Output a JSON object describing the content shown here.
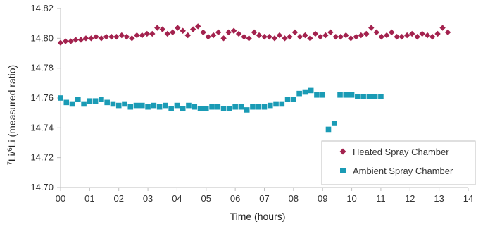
{
  "chart_data": {
    "type": "scatter",
    "title": "",
    "xlabel": "Time (hours)",
    "ylabel": "7Li/6Li (measured ratio)",
    "ylabel_parts": {
      "sup1": "7",
      "base1": "Li/",
      "sup2": "6",
      "base2": "Li (measured ratio)"
    },
    "xlim": [
      0,
      14
    ],
    "ylim": [
      14.7,
      14.82
    ],
    "x_ticks": [
      0,
      1,
      2,
      3,
      4,
      5,
      6,
      7,
      8,
      9,
      10,
      11,
      12,
      13,
      14
    ],
    "x_tick_labels": [
      "00",
      "01",
      "02",
      "03",
      "04",
      "05",
      "06",
      "07",
      "08",
      "09",
      "10",
      "11",
      "12",
      "13",
      "14"
    ],
    "y_ticks": [
      14.7,
      14.72,
      14.74,
      14.76,
      14.78,
      14.8,
      14.82
    ],
    "y_tick_labels": [
      "14.70",
      "14.72",
      "14.74",
      "14.76",
      "14.78",
      "14.80",
      "14.82"
    ],
    "grid": false,
    "legend_position": "bottom-right",
    "series": [
      {
        "name": "Heated Spray Chamber",
        "marker": "diamond",
        "color": "#a3224e",
        "x": [
          0.0,
          0.17,
          0.35,
          0.52,
          0.7,
          0.87,
          1.05,
          1.22,
          1.4,
          1.57,
          1.75,
          1.92,
          2.1,
          2.27,
          2.45,
          2.62,
          2.8,
          2.97,
          3.15,
          3.32,
          3.5,
          3.67,
          3.85,
          4.02,
          4.2,
          4.37,
          4.55,
          4.72,
          4.9,
          5.07,
          5.25,
          5.42,
          5.6,
          5.77,
          5.95,
          6.12,
          6.3,
          6.47,
          6.65,
          6.82,
          7.0,
          7.17,
          7.35,
          7.52,
          7.7,
          7.87,
          8.05,
          8.22,
          8.4,
          8.57,
          8.75,
          8.92,
          9.1,
          9.27,
          9.45,
          9.62,
          9.8,
          9.97,
          10.15,
          10.32,
          10.5,
          10.67,
          10.85,
          11.02,
          11.2,
          11.37,
          11.55,
          11.72,
          11.9,
          12.07,
          12.25,
          12.42,
          12.6,
          12.77,
          12.95,
          13.12,
          13.3
        ],
        "y": [
          14.797,
          14.798,
          14.798,
          14.799,
          14.799,
          14.8,
          14.8,
          14.801,
          14.8,
          14.801,
          14.801,
          14.801,
          14.802,
          14.801,
          14.8,
          14.802,
          14.802,
          14.803,
          14.803,
          14.807,
          14.806,
          14.803,
          14.804,
          14.807,
          14.805,
          14.802,
          14.806,
          14.808,
          14.804,
          14.801,
          14.802,
          14.804,
          14.8,
          14.804,
          14.805,
          14.803,
          14.801,
          14.8,
          14.804,
          14.802,
          14.801,
          14.801,
          14.8,
          14.802,
          14.8,
          14.801,
          14.804,
          14.801,
          14.802,
          14.8,
          14.803,
          14.801,
          14.802,
          14.804,
          14.801,
          14.801,
          14.802,
          14.8,
          14.801,
          14.802,
          14.803,
          14.807,
          14.804,
          14.801,
          14.802,
          14.804,
          14.801,
          14.801,
          14.802,
          14.803,
          14.801,
          14.803,
          14.802,
          14.801,
          14.803,
          14.807,
          14.804
        ]
      },
      {
        "name": "Ambient Spray Chamber",
        "marker": "square",
        "color": "#1a9bb5",
        "x": [
          0.0,
          0.2,
          0.4,
          0.6,
          0.8,
          1.0,
          1.2,
          1.4,
          1.6,
          1.8,
          2.0,
          2.2,
          2.4,
          2.6,
          2.8,
          3.0,
          3.2,
          3.4,
          3.6,
          3.8,
          4.0,
          4.2,
          4.4,
          4.6,
          4.8,
          5.0,
          5.2,
          5.4,
          5.6,
          5.8,
          6.0,
          6.2,
          6.4,
          6.6,
          6.8,
          7.0,
          7.2,
          7.4,
          7.6,
          7.8,
          8.0,
          8.2,
          8.4,
          8.6,
          8.8,
          9.0,
          9.2,
          9.4,
          9.6,
          9.8,
          10.0,
          10.2,
          10.4,
          10.6,
          10.8,
          11.0
        ],
        "y": [
          14.76,
          14.757,
          14.756,
          14.759,
          14.756,
          14.758,
          14.758,
          14.759,
          14.757,
          14.756,
          14.755,
          14.756,
          14.754,
          14.755,
          14.755,
          14.754,
          14.755,
          14.754,
          14.755,
          14.753,
          14.755,
          14.753,
          14.755,
          14.754,
          14.753,
          14.753,
          14.754,
          14.754,
          14.753,
          14.753,
          14.754,
          14.754,
          14.752,
          14.754,
          14.754,
          14.754,
          14.755,
          14.756,
          14.756,
          14.759,
          14.759,
          14.763,
          14.764,
          14.765,
          14.762,
          14.762,
          14.739,
          14.743,
          14.762,
          14.762,
          14.762,
          14.761,
          14.761,
          14.761,
          14.761,
          14.761
        ]
      }
    ]
  }
}
